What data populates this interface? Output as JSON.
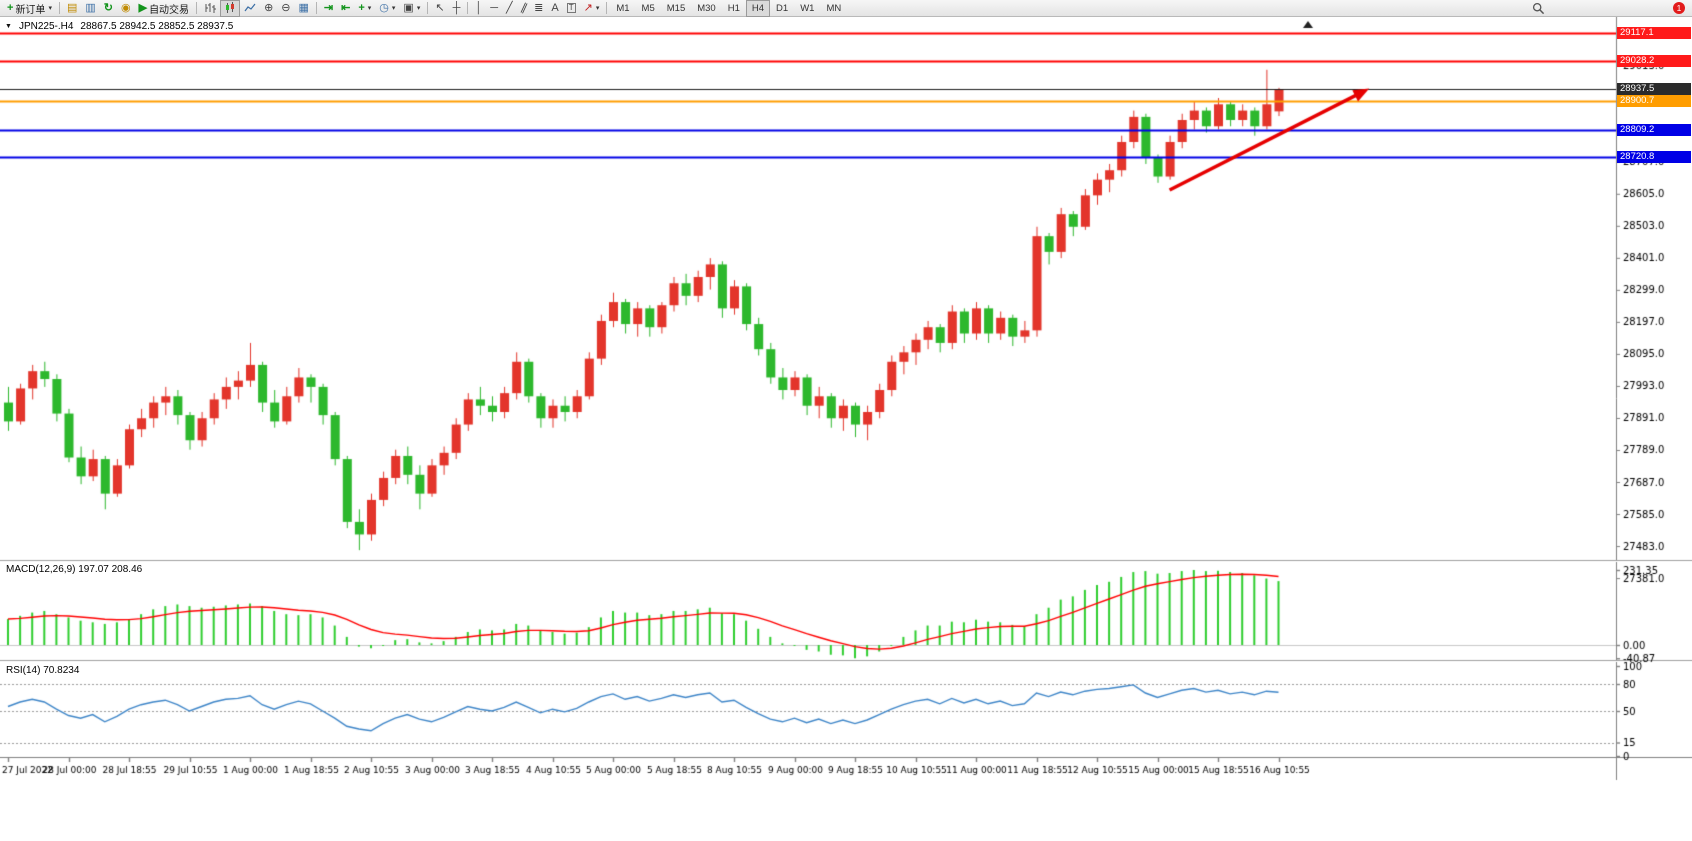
{
  "toolbar": {
    "new_order_label": "新订单",
    "autotrading_label": "自动交易",
    "timeframes": [
      "M1",
      "M5",
      "M15",
      "M30",
      "H1",
      "H4",
      "D1",
      "W1",
      "MN"
    ],
    "active_timeframe": "H4",
    "notification_count": "1",
    "icons": {
      "plus": "+",
      "caret": "▾",
      "market_watch": "▤",
      "data_window": "▥",
      "refresh": "↻",
      "history": "◉",
      "play": "▶",
      "zoom_in": "⊕",
      "zoom_out": "⊖",
      "tile": "▦",
      "autoscroll": "⇥",
      "shift": "⇤",
      "indicators": "+",
      "clock": "◷",
      "template": "▣",
      "cursor": "↖",
      "crosshair": "┼",
      "vline": "│",
      "hline": "─",
      "trend": "╱",
      "channel": "∥",
      "fibo": "≣",
      "text": "A",
      "text_label": "T",
      "arrows": "↗",
      "collapse": "▼",
      "shift_marker": "▲"
    }
  },
  "chart_header": {
    "collapse_icon": "▼",
    "symbol_period": "JPN225-.H4",
    "ohlc": "28867.5 28942.5 28852.5 28937.5"
  },
  "chart_data": {
    "type": "candlestick",
    "symbol": "JPN225-",
    "period": "H4",
    "current": {
      "open": 28867.5,
      "high": 28942.5,
      "low": 28852.5,
      "close": 28937.5
    },
    "colors": {
      "up": "#e3352b",
      "down": "#2db82d",
      "macd_hist": "#2fce2f",
      "macd_signal": "#ff0000",
      "rsi_line": "#3d85c8",
      "arrow": "#e60000"
    },
    "y_axis": {
      "ticks": [
        29013,
        28911,
        28809,
        28707,
        28605,
        28503,
        28401,
        28299,
        28197,
        28095,
        27993,
        27891,
        27789,
        27687,
        27585,
        27483,
        27381
      ],
      "hlines": [
        {
          "price": 29117.1,
          "label": "29117.1",
          "color": "#ff0000",
          "width": 2,
          "box": "#ff1a1a"
        },
        {
          "price": 29028.2,
          "label": "29028.2",
          "color": "#ff0000",
          "width": 2,
          "box": "#ff1a1a"
        },
        {
          "price": 28937.5,
          "label": "28937.5",
          "color": "#1a1a1a",
          "width": 1,
          "box": "#2b2b2b"
        },
        {
          "price": 28900.7,
          "label": "28900.7",
          "color": "#ff9d00",
          "width": 2,
          "box": "#ff9d00"
        },
        {
          "price": 28809.2,
          "label": "28809.2",
          "color": "#0000e6",
          "width": 2,
          "box": "#0000e6"
        },
        {
          "price": 28720.8,
          "label": "28720.8",
          "color": "#0000e6",
          "width": 2,
          "box": "#0000e6"
        }
      ]
    },
    "x_labels": [
      "27 Jul 2022",
      "28 Jul 00:00",
      "28 Jul 18:55",
      "29 Jul 10:55",
      "1 Aug 00:00",
      "1 Aug 18:55",
      "2 Aug 10:55",
      "3 Aug 00:00",
      "3 Aug 18:55",
      "4 Aug 10:55",
      "5 Aug 00:00",
      "5 Aug 18:55",
      "8 Aug 10:55",
      "9 Aug 00:00",
      "9 Aug 18:55",
      "10 Aug 10:55",
      "11 Aug 00:00",
      "11 Aug 18:55",
      "12 Aug 10:55",
      "15 Aug 00:00",
      "15 Aug 18:55",
      "16 Aug 10:55"
    ],
    "label_step": 5,
    "candles": [
      [
        27940,
        27990,
        27850,
        27880
      ],
      [
        27880,
        28000,
        27870,
        27985
      ],
      [
        27985,
        28060,
        27950,
        28040
      ],
      [
        28040,
        28070,
        27990,
        28015
      ],
      [
        28015,
        28030,
        27880,
        27905
      ],
      [
        27905,
        27920,
        27750,
        27765
      ],
      [
        27765,
        27800,
        27680,
        27705
      ],
      [
        27705,
        27790,
        27690,
        27760
      ],
      [
        27760,
        27770,
        27600,
        27650
      ],
      [
        27650,
        27760,
        27640,
        27740
      ],
      [
        27740,
        27870,
        27730,
        27855
      ],
      [
        27855,
        27920,
        27830,
        27890
      ],
      [
        27890,
        27960,
        27860,
        27940
      ],
      [
        27940,
        27990,
        27900,
        27960
      ],
      [
        27960,
        27980,
        27870,
        27900
      ],
      [
        27900,
        27910,
        27790,
        27820
      ],
      [
        27820,
        27910,
        27800,
        27890
      ],
      [
        27890,
        27970,
        27870,
        27950
      ],
      [
        27950,
        28020,
        27920,
        27990
      ],
      [
        27990,
        28040,
        27950,
        28010
      ],
      [
        28010,
        28130,
        27990,
        28060
      ],
      [
        28060,
        28070,
        27910,
        27940
      ],
      [
        27940,
        27980,
        27860,
        27880
      ],
      [
        27880,
        27990,
        27870,
        27960
      ],
      [
        27960,
        28050,
        27940,
        28020
      ],
      [
        28020,
        28030,
        27940,
        27990
      ],
      [
        27990,
        28000,
        27870,
        27900
      ],
      [
        27900,
        27910,
        27740,
        27760
      ],
      [
        27760,
        27770,
        27540,
        27560
      ],
      [
        27560,
        27600,
        27470,
        27520
      ],
      [
        27520,
        27650,
        27500,
        27630
      ],
      [
        27630,
        27720,
        27610,
        27700
      ],
      [
        27700,
        27790,
        27680,
        27770
      ],
      [
        27770,
        27800,
        27680,
        27710
      ],
      [
        27710,
        27740,
        27600,
        27650
      ],
      [
        27650,
        27760,
        27640,
        27740
      ],
      [
        27740,
        27800,
        27710,
        27780
      ],
      [
        27780,
        27890,
        27760,
        27870
      ],
      [
        27870,
        27970,
        27850,
        27950
      ],
      [
        27950,
        27990,
        27900,
        27930
      ],
      [
        27930,
        27960,
        27880,
        27910
      ],
      [
        27910,
        27990,
        27890,
        27970
      ],
      [
        27970,
        28100,
        27950,
        28070
      ],
      [
        28070,
        28080,
        27940,
        27960
      ],
      [
        27960,
        27970,
        27860,
        27890
      ],
      [
        27890,
        27950,
        27860,
        27930
      ],
      [
        27930,
        27960,
        27880,
        27910
      ],
      [
        27910,
        27980,
        27890,
        27960
      ],
      [
        27960,
        28100,
        27950,
        28080
      ],
      [
        28080,
        28220,
        28060,
        28200
      ],
      [
        28200,
        28290,
        28180,
        28260
      ],
      [
        28260,
        28270,
        28160,
        28190
      ],
      [
        28190,
        28260,
        28150,
        28240
      ],
      [
        28240,
        28250,
        28150,
        28180
      ],
      [
        28180,
        28260,
        28160,
        28250
      ],
      [
        28250,
        28340,
        28230,
        28320
      ],
      [
        28320,
        28350,
        28250,
        28280
      ],
      [
        28280,
        28360,
        28260,
        28340
      ],
      [
        28340,
        28400,
        28300,
        28380
      ],
      [
        28380,
        28390,
        28210,
        28240
      ],
      [
        28240,
        28330,
        28220,
        28310
      ],
      [
        28310,
        28320,
        28170,
        28190
      ],
      [
        28190,
        28210,
        28090,
        28110
      ],
      [
        28110,
        28130,
        28000,
        28020
      ],
      [
        28020,
        28050,
        27950,
        27980
      ],
      [
        27980,
        28040,
        27960,
        28020
      ],
      [
        28020,
        28030,
        27900,
        27930
      ],
      [
        27930,
        27990,
        27890,
        27960
      ],
      [
        27960,
        27970,
        27860,
        27890
      ],
      [
        27890,
        27950,
        27850,
        27930
      ],
      [
        27930,
        27940,
        27830,
        27870
      ],
      [
        27870,
        27930,
        27820,
        27910
      ],
      [
        27910,
        28000,
        27890,
        27980
      ],
      [
        27980,
        28090,
        27960,
        28070
      ],
      [
        28070,
        28120,
        28030,
        28100
      ],
      [
        28100,
        28160,
        28060,
        28140
      ],
      [
        28140,
        28200,
        28110,
        28180
      ],
      [
        28180,
        28190,
        28100,
        28130
      ],
      [
        28130,
        28250,
        28110,
        28230
      ],
      [
        28230,
        28240,
        28130,
        28160
      ],
      [
        28160,
        28260,
        28140,
        28240
      ],
      [
        28240,
        28250,
        28130,
        28160
      ],
      [
        28160,
        28230,
        28140,
        28210
      ],
      [
        28210,
        28220,
        28120,
        28150
      ],
      [
        28150,
        28200,
        28130,
        28170
      ],
      [
        28170,
        28500,
        28150,
        28470
      ],
      [
        28470,
        28480,
        28380,
        28420
      ],
      [
        28420,
        28560,
        28400,
        28540
      ],
      [
        28540,
        28550,
        28470,
        28500
      ],
      [
        28500,
        28620,
        28490,
        28600
      ],
      [
        28600,
        28670,
        28570,
        28650
      ],
      [
        28650,
        28700,
        28610,
        28680
      ],
      [
        28680,
        28790,
        28660,
        28770
      ],
      [
        28770,
        28870,
        28750,
        28850
      ],
      [
        28850,
        28860,
        28700,
        28720
      ],
      [
        28720,
        28730,
        28640,
        28660
      ],
      [
        28660,
        28790,
        28650,
        28770
      ],
      [
        28770,
        28860,
        28750,
        28840
      ],
      [
        28840,
        28900,
        28810,
        28870
      ],
      [
        28870,
        28880,
        28800,
        28820
      ],
      [
        28820,
        28910,
        28810,
        28890
      ],
      [
        28890,
        28900,
        28820,
        28840
      ],
      [
        28840,
        28890,
        28820,
        28870
      ],
      [
        28870,
        28880,
        28790,
        28820
      ],
      [
        28820,
        29000,
        28810,
        28890
      ],
      [
        28867.5,
        28942.5,
        28852.5,
        28937.5
      ]
    ],
    "indicators": {
      "macd": {
        "label": "MACD(12,26,9) 197.07 208.46",
        "max": 231.35,
        "min": -40.87,
        "scale_labels": [
          "231.35",
          "0.00",
          "-40.87"
        ],
        "values": [
          80,
          90,
          100,
          105,
          95,
          85,
          75,
          70,
          65,
          70,
          80,
          95,
          110,
          120,
          125,
          120,
          115,
          118,
          122,
          125,
          128,
          120,
          105,
          95,
          92,
          95,
          85,
          60,
          25,
          -5,
          -10,
          0,
          15,
          18,
          8,
          5,
          12,
          25,
          40,
          48,
          45,
          48,
          65,
          60,
          45,
          40,
          35,
          38,
          55,
          85,
          105,
          100,
          100,
          92,
          95,
          105,
          105,
          110,
          115,
          98,
          95,
          75,
          50,
          25,
          5,
          0,
          -15,
          -20,
          -30,
          -32,
          -40.87,
          -35,
          -20,
          0,
          25,
          45,
          60,
          60,
          72,
          70,
          78,
          72,
          70,
          62,
          58,
          95,
          115,
          140,
          150,
          170,
          185,
          195,
          210,
          225,
          228,
          220,
          222,
          228,
          231.35,
          228,
          229,
          225,
          222,
          215,
          205,
          197.07
        ]
      },
      "rsi": {
        "label": "RSI(14) 70.8234",
        "current": 70.8234,
        "levels": [
          80,
          50,
          15
        ],
        "scale_labels": [
          "100",
          "80",
          "50",
          "15",
          "0"
        ],
        "values": [
          55,
          60,
          63,
          60,
          52,
          45,
          42,
          46,
          38,
          44,
          52,
          57,
          60,
          62,
          57,
          50,
          55,
          60,
          63,
          64,
          67,
          57,
          52,
          57,
          61,
          58,
          50,
          42,
          33,
          30,
          28,
          36,
          42,
          46,
          41,
          38,
          43,
          49,
          55,
          52,
          50,
          54,
          60,
          54,
          48,
          52,
          49,
          53,
          60,
          66,
          69,
          63,
          66,
          61,
          64,
          68,
          65,
          68,
          70,
          60,
          62,
          54,
          47,
          41,
          38,
          42,
          37,
          41,
          36,
          40,
          36,
          40,
          46,
          52,
          57,
          61,
          63,
          58,
          64,
          59,
          63,
          58,
          61,
          56,
          58,
          70,
          66,
          71,
          68,
          72,
          74,
          75,
          77,
          79,
          70,
          65,
          69,
          73,
          75,
          71,
          73,
          69,
          71,
          68,
          72,
          70.82
        ]
      }
    },
    "trend_arrow": {
      "from_bar": 96,
      "from_price": 28617,
      "to_bar": 112.5,
      "to_price": 28940
    }
  }
}
